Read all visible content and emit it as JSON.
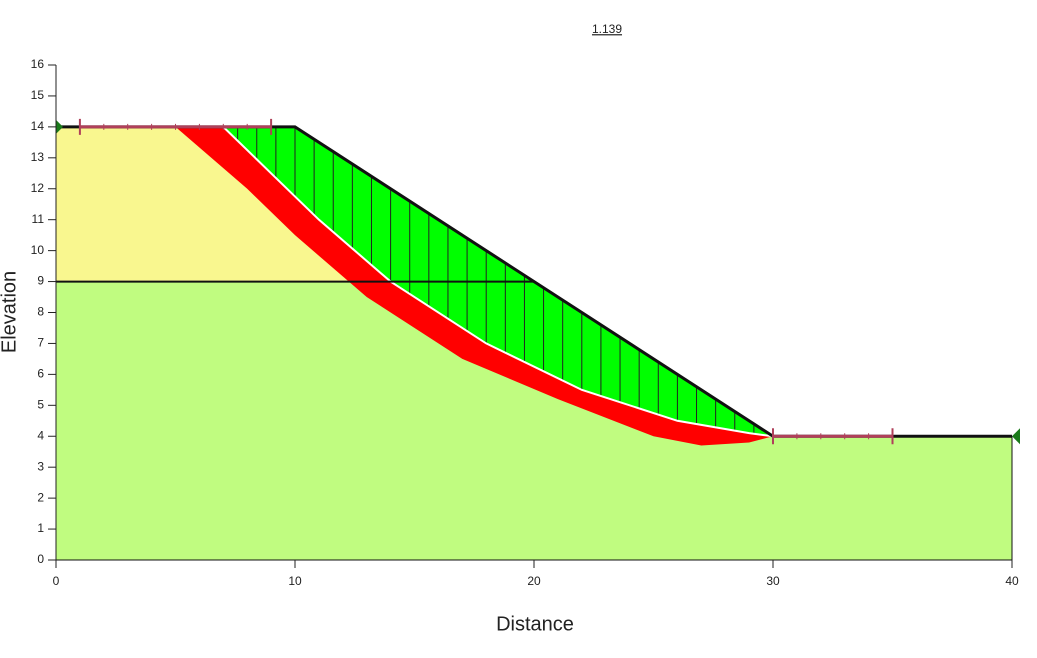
{
  "chart_data": {
    "type": "slope-stability",
    "title": "1.139",
    "xlabel": "Distance",
    "ylabel": "Elevation",
    "xlim": [
      0,
      40
    ],
    "ylim": [
      0,
      16
    ],
    "xticks": [
      0,
      10,
      20,
      30,
      40
    ],
    "yticks": [
      0,
      1,
      2,
      3,
      4,
      5,
      6,
      7,
      8,
      9,
      10,
      11,
      12,
      13,
      14,
      15,
      16
    ],
    "regions": [
      {
        "color": "#c0fc80",
        "x": [
          0,
          0,
          20,
          30,
          40,
          40
        ],
        "y": [
          0,
          9,
          9,
          4,
          4,
          0
        ]
      },
      {
        "color": "#f9f78f",
        "x": [
          0,
          0,
          10,
          20
        ],
        "y": [
          9,
          14,
          14,
          9
        ]
      },
      {
        "color": "#ff0000",
        "x": [
          5,
          8,
          10,
          13,
          17,
          21,
          25,
          27,
          29,
          30,
          29,
          26,
          22,
          18,
          14,
          11,
          9,
          7
        ],
        "y": [
          14,
          12,
          10.5,
          8.5,
          6.5,
          5.2,
          4,
          3.7,
          3.8,
          4,
          4.1,
          4.5,
          5.5,
          7,
          9,
          11,
          12.5,
          14
        ]
      },
      {
        "color": "#00ff00",
        "x": [
          7,
          9,
          11,
          14,
          18,
          22,
          26,
          29,
          30,
          10
        ],
        "y": [
          14,
          12.5,
          11,
          9,
          7,
          5.5,
          4.5,
          4.1,
          4,
          14
        ]
      }
    ],
    "ground": {
      "x": [
        0,
        10,
        30,
        40
      ],
      "y": [
        14,
        14,
        4,
        4
      ]
    },
    "layer_boundary": {
      "x": [
        0,
        20
      ],
      "y": [
        9,
        9
      ]
    },
    "slip_surface": {
      "x": [
        7,
        9,
        11,
        14,
        18,
        22,
        26,
        29,
        30
      ],
      "y": [
        14,
        12.5,
        11,
        9,
        7,
        5.5,
        4.5,
        4.1,
        4
      ]
    },
    "slices_x": [
      7.6,
      8.4,
      9.2,
      10,
      10.8,
      11.6,
      12.4,
      13.2,
      14,
      14.8,
      15.6,
      16.4,
      17.2,
      18,
      18.8,
      19.6,
      20.4,
      21.2,
      22,
      22.8,
      23.6,
      24.4,
      25.2,
      26,
      26.8,
      27.6,
      28.4,
      29.2
    ],
    "entry_range": [
      1,
      9
    ],
    "exit_range": [
      30,
      35
    ],
    "range_color": "#b0405a",
    "piezo_color": "#1a7a1a"
  }
}
